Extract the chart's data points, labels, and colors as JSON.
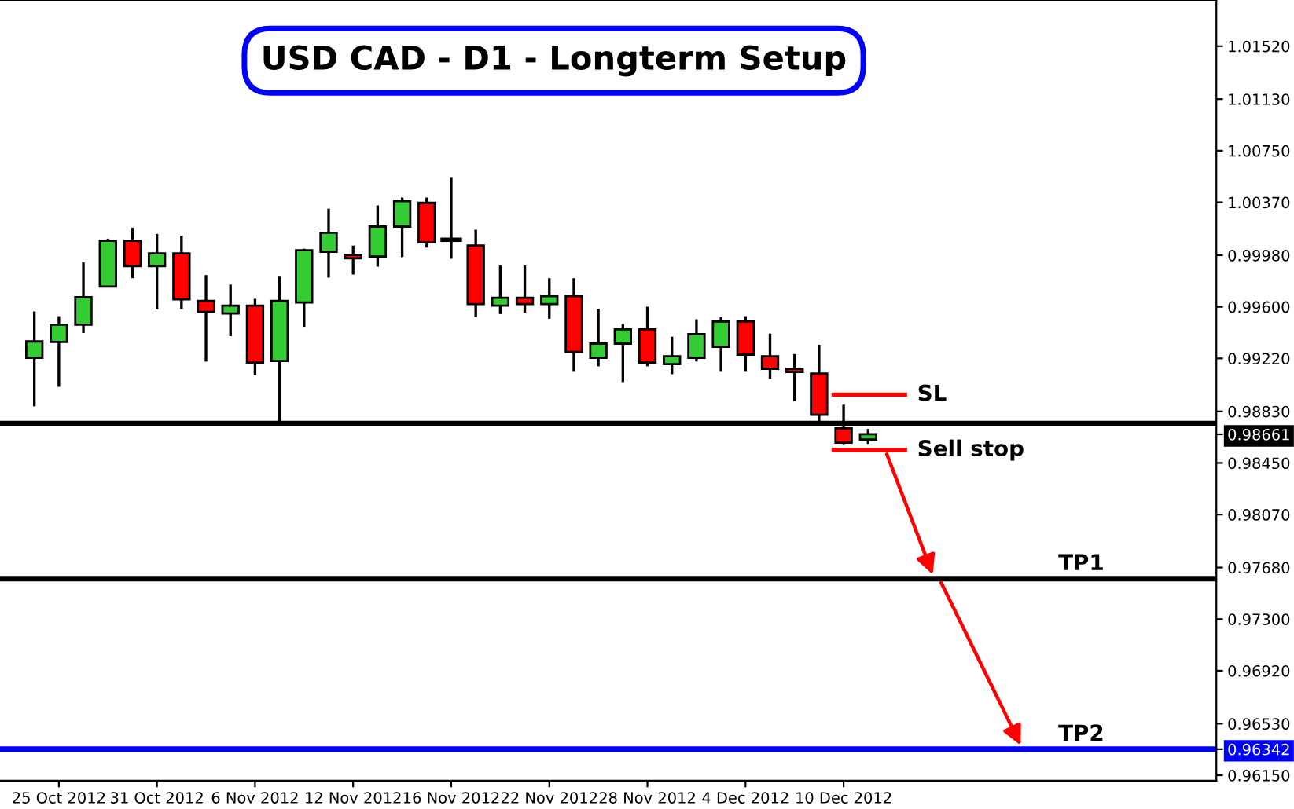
{
  "chart_data": {
    "type": "candlestick",
    "title": "USD CAD - D1 - Longterm Setup",
    "categories": [
      null,
      "25 Oct 2012",
      null,
      null,
      null,
      "31 Oct 2012",
      null,
      null,
      null,
      "6 Nov 2012",
      null,
      null,
      null,
      "12 Nov 2012",
      null,
      null,
      null,
      "16 Nov 2012",
      null,
      null,
      null,
      "22 Nov 2012",
      null,
      null,
      null,
      "28 Nov 2012",
      null,
      null,
      null,
      "4 Dec 2012",
      null,
      null,
      null,
      "10 Dec 2012",
      null,
      null,
      null,
      null,
      null,
      null,
      null,
      null,
      null,
      null,
      null,
      null,
      null,
      null,
      null
    ],
    "ohlc": [
      [
        0.99224,
        0.99566,
        0.98867,
        0.99345
      ],
      [
        0.99341,
        0.99531,
        0.99011,
        0.99469
      ],
      [
        0.99469,
        0.99927,
        0.99407,
        0.99671
      ],
      [
        0.99749,
        1.00102,
        0.99749,
        1.00086
      ],
      [
        1.00086,
        1.00183,
        0.99811,
        0.999
      ],
      [
        0.999,
        1.00137,
        0.99582,
        0.99993
      ],
      [
        0.99993,
        1.00125,
        0.99582,
        0.99655
      ],
      [
        0.99644,
        0.99834,
        0.99197,
        0.99562
      ],
      [
        0.99551,
        0.99764,
        0.99384,
        0.99609
      ],
      [
        0.99609,
        0.99659,
        0.99096,
        0.99189
      ],
      [
        0.99201,
        0.99822,
        0.98735,
        0.99644
      ],
      [
        0.99632,
        1.00028,
        0.99453,
        1.00017
      ],
      [
        1.00005,
        1.00323,
        0.99815,
        1.00145
      ],
      [
        0.99982,
        1.00051,
        0.99838,
        0.99958
      ],
      [
        0.9997,
        1.00347,
        0.99896,
        1.00191
      ],
      [
        1.00191,
        1.00405,
        0.99966,
        1.00378
      ],
      [
        1.00366,
        1.00405,
        1.00036,
        1.00075
      ],
      [
        1.00094,
        1.00556,
        0.99954,
        1.00094
      ],
      [
        1.00051,
        1.00168,
        0.99523,
        0.9962
      ],
      [
        0.99609,
        0.99904,
        0.99547,
        0.99667
      ],
      [
        0.99667,
        0.99904,
        0.99558,
        0.9962
      ],
      [
        0.9962,
        0.99811,
        0.99512,
        0.99679
      ],
      [
        0.99679,
        0.99811,
        0.99127,
        0.99267
      ],
      [
        0.99224,
        0.99586,
        0.99162,
        0.99329
      ],
      [
        0.99329,
        0.99473,
        0.99046,
        0.99434
      ],
      [
        0.99434,
        0.99601,
        0.99162,
        0.99189
      ],
      [
        0.99178,
        0.9938,
        0.99104,
        0.99236
      ],
      [
        0.99224,
        0.99508,
        0.99197,
        0.99399
      ],
      [
        0.99306,
        0.99523,
        0.99127,
        0.99492
      ],
      [
        0.99492,
        0.99531,
        0.99127,
        0.99248
      ],
      [
        0.99236,
        0.99403,
        0.99069,
        0.99143
      ],
      [
        0.99143,
        0.99252,
        0.98906,
        0.9912
      ],
      [
        0.99108,
        0.99321,
        0.98751,
        0.98805
      ],
      [
        0.98705,
        0.98879,
        0.98588,
        0.986
      ],
      [
        0.98623,
        0.98701,
        0.9859,
        0.98661
      ],
      null,
      null,
      null,
      null,
      null,
      null,
      null,
      null,
      null,
      null,
      null,
      null,
      null,
      null
    ],
    "colors": [
      "#33cc33",
      "#33cc33",
      "#33cc33",
      "#33cc33",
      "#ff0000",
      "#33cc33",
      "#ff0000",
      "#ff0000",
      "#33cc33",
      "#ff0000",
      "#33cc33",
      "#33cc33",
      "#33cc33",
      "#ff0000",
      "#33cc33",
      "#33cc33",
      "#ff0000",
      "#000000",
      "#ff0000",
      "#33cc33",
      "#ff0000",
      "#33cc33",
      "#ff0000",
      "#33cc33",
      "#33cc33",
      "#ff0000",
      "#33cc33",
      "#33cc33",
      "#33cc33",
      "#ff0000",
      "#ff0000",
      "#ff0000",
      "#ff0000",
      "#ff0000",
      "#33cc33",
      null,
      null,
      null,
      null,
      null,
      null,
      null,
      null,
      null,
      null,
      null,
      null,
      null,
      null
    ],
    "ylim": [
      0.9611,
      1.0186
    ],
    "yticks": [
      {
        "value": 1.0152,
        "label": "1.01520"
      },
      {
        "value": 1.0113,
        "label": "1.01130"
      },
      {
        "value": 1.0075,
        "label": "1.00750"
      },
      {
        "value": 1.0037,
        "label": "1.00370"
      },
      {
        "value": 0.9998,
        "label": "0.99980"
      },
      {
        "value": 0.996,
        "label": "0.99600"
      },
      {
        "value": 0.9922,
        "label": "0.99220"
      },
      {
        "value": 0.9883,
        "label": "0.98830"
      },
      {
        "value": 0.98661,
        "label": "0.98661"
      },
      {
        "value": 0.9845,
        "label": "0.98450"
      },
      {
        "value": 0.9807,
        "label": "0.98070"
      },
      {
        "value": 0.9768,
        "label": "0.97680"
      },
      {
        "value": 0.973,
        "label": "0.97300"
      },
      {
        "value": 0.9692,
        "label": "0.96920"
      },
      {
        "value": 0.9653,
        "label": "0.96530"
      },
      {
        "value": 0.96342,
        "label": "0.96342"
      },
      {
        "value": 0.9615,
        "label": "0.96150"
      }
    ],
    "ref_lines": [
      {
        "axis": "y",
        "value": 0.9874,
        "label": null,
        "color": "#000000"
      },
      {
        "axis": "y",
        "value": 0.98953,
        "label": "SL",
        "color": "#ff0000"
      },
      {
        "axis": "y",
        "value": 0.98545,
        "label": "Sell stop",
        "color": "#ff0000"
      },
      {
        "axis": "y",
        "value": 0.97598,
        "label": "TP1",
        "color": "#000000"
      },
      {
        "axis": "y",
        "value": 0.96342,
        "label": "TP2",
        "color": "#0000ff"
      }
    ],
    "grid": false,
    "legend": false
  }
}
